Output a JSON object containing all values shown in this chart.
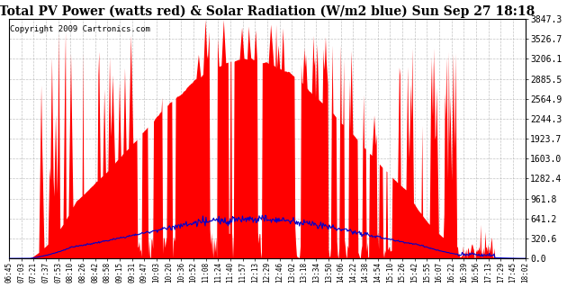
{
  "title": "Total PV Power (watts red) & Solar Radiation (W/m2 blue) Sun Sep 27 18:18",
  "copyright": "Copyright 2009 Cartronics.com",
  "ymax": 3847.3,
  "yticks": [
    0.0,
    320.6,
    641.2,
    961.8,
    1282.4,
    1603.0,
    1923.7,
    2244.3,
    2564.9,
    2885.5,
    3206.1,
    3526.7,
    3847.3
  ],
  "xtick_labels": [
    "06:45",
    "07:03",
    "07:21",
    "07:37",
    "07:53",
    "08:10",
    "08:26",
    "08:42",
    "08:58",
    "09:15",
    "09:31",
    "09:47",
    "10:03",
    "10:20",
    "10:36",
    "10:52",
    "11:08",
    "11:24",
    "11:40",
    "11:57",
    "12:13",
    "12:29",
    "12:46",
    "13:02",
    "13:18",
    "13:34",
    "13:50",
    "14:06",
    "14:22",
    "14:38",
    "14:54",
    "15:10",
    "15:26",
    "15:42",
    "15:55",
    "16:07",
    "16:22",
    "16:39",
    "16:56",
    "17:13",
    "17:29",
    "17:45",
    "18:02"
  ],
  "bg_color": "#ffffff",
  "grid_color": "#aaaaaa",
  "pv_color": "#ff0000",
  "solar_color": "#0000cc",
  "title_fontsize": 10,
  "copyright_fontsize": 6.5
}
